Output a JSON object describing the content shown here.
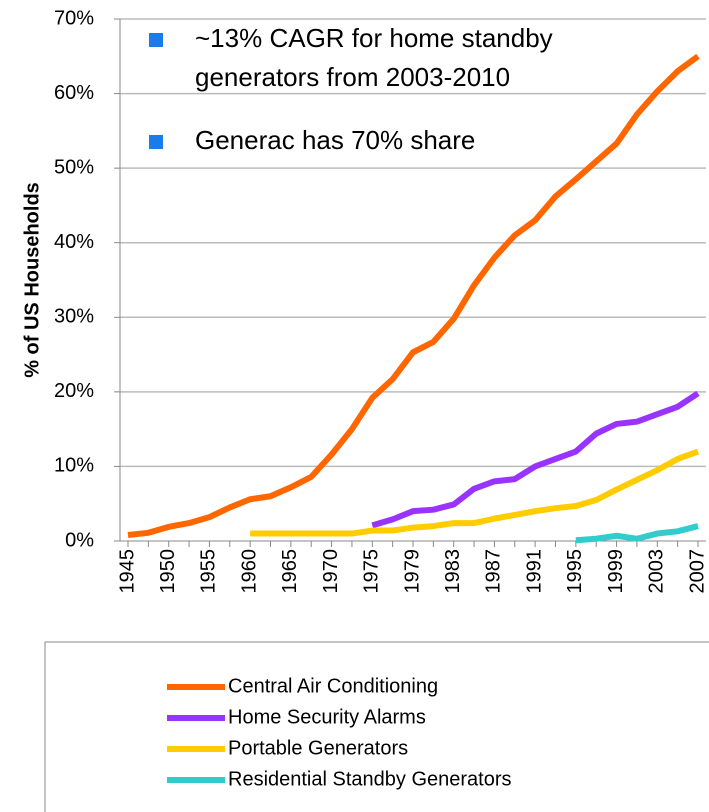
{
  "chart_data": {
    "type": "line",
    "y_label": "% of US Households",
    "categories": [
      "1945",
      null,
      "1950",
      null,
      "1955",
      null,
      "1960",
      null,
      "1965",
      null,
      "1970",
      null,
      "1975",
      null,
      "1979",
      null,
      "1983",
      null,
      "1987",
      null,
      "1991",
      null,
      "1995",
      null,
      "1999",
      null,
      "2003",
      null,
      "2007"
    ],
    "series": [
      {
        "name": "Central Air Conditioning",
        "color": "#ff6600",
        "values": [
          0.8,
          1.1,
          1.9,
          2.4,
          3.2,
          4.5,
          5.6,
          6.0,
          7.2,
          8.6,
          11.6,
          15,
          19.2,
          21.7,
          25.3,
          26.7,
          29.8,
          34.3,
          38,
          41,
          43,
          46.2,
          48.5,
          50.9,
          53.3,
          57.2,
          60.3,
          63,
          65
        ]
      },
      {
        "name": "Home Security Alarms",
        "color": "#9933ff",
        "values": [
          null,
          null,
          null,
          null,
          null,
          null,
          null,
          null,
          null,
          null,
          null,
          null,
          2.1,
          2.9,
          4.0,
          4.2,
          4.9,
          7.0,
          8.0,
          8.3,
          10,
          11,
          12,
          14.4,
          15.7,
          16,
          17,
          18,
          19.8
        ]
      },
      {
        "name": "Portable Generators",
        "color": "#ffcc00",
        "values": [
          null,
          null,
          null,
          null,
          null,
          null,
          1.0,
          1.0,
          1.0,
          1.0,
          1.0,
          1.0,
          1.4,
          1.4,
          1.8,
          2.0,
          2.4,
          2.4,
          3.0,
          3.5,
          4.0,
          4.4,
          4.7,
          5.5,
          6.9,
          8.2,
          9.5,
          11.0,
          12.0
        ]
      },
      {
        "name": "Residential Standby Generators",
        "color": "#33cccc",
        "values": [
          null,
          null,
          null,
          null,
          null,
          null,
          null,
          null,
          null,
          null,
          null,
          null,
          null,
          null,
          null,
          null,
          null,
          null,
          null,
          null,
          null,
          null,
          0.1,
          0.3,
          0.7,
          0.3,
          1.0,
          1.3,
          2.0
        ]
      }
    ],
    "ylim": [
      0,
      70
    ],
    "yticks": [
      {
        "value": 0,
        "label": "0%"
      },
      {
        "value": 10,
        "label": "10%"
      },
      {
        "value": 20,
        "label": "20%"
      },
      {
        "value": 30,
        "label": "30%"
      },
      {
        "value": 40,
        "label": "40%"
      },
      {
        "value": 50,
        "label": "50%"
      },
      {
        "value": 60,
        "label": "60%"
      },
      {
        "value": 70,
        "label": "70%"
      }
    ],
    "grid": true,
    "annotations": [
      [
        "~13% CAGR for home standby",
        "generators from 2003-2010"
      ],
      [
        "Generac has 70% share"
      ]
    ],
    "bullet_color": "#1a7ce8"
  }
}
